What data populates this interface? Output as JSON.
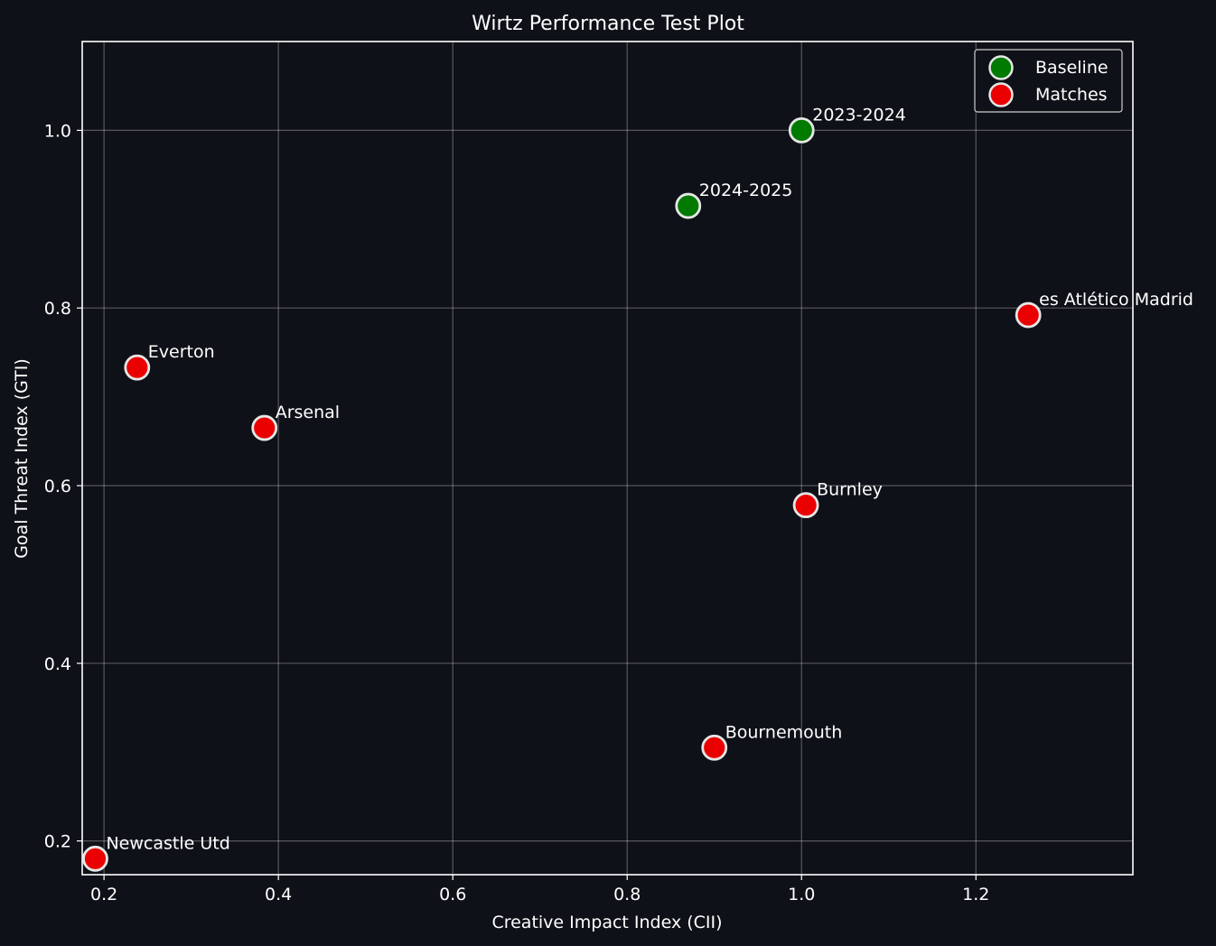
{
  "colors": {
    "background": "#0e1117",
    "axes": "#ffffff",
    "grid": "#ffffff",
    "text": "#ffffff",
    "marker_edge": "#e6e6e6"
  },
  "chart_data": {
    "type": "scatter",
    "title": "Wirtz Performance Test Plot",
    "xlabel": "Creative Impact Index (CII)",
    "ylabel": "Goal Threat Index (GTI)",
    "xlim": [
      0.175,
      1.38
    ],
    "ylim": [
      0.162,
      1.1
    ],
    "xticks": [
      0.2,
      0.4,
      0.6,
      0.8,
      1.0,
      1.2
    ],
    "xtick_labels": [
      "0.2",
      "0.4",
      "0.6",
      "0.8",
      "1.0",
      "1.2"
    ],
    "yticks": [
      0.2,
      0.4,
      0.6,
      0.8,
      1.0
    ],
    "ytick_labels": [
      "0.2",
      "0.4",
      "0.6",
      "0.8",
      "1.0"
    ],
    "grid": true,
    "legend_position": "top-right",
    "series": [
      {
        "name": "Baseline",
        "color": "#007a00",
        "points": [
          {
            "x": 1.0,
            "y": 1.0,
            "label": "2023-2024"
          },
          {
            "x": 0.87,
            "y": 0.915,
            "label": "2024-2025"
          }
        ]
      },
      {
        "name": "Matches",
        "color": "#ea0000",
        "points": [
          {
            "x": 1.26,
            "y": 0.792,
            "label": "es Atlético Madrid"
          },
          {
            "x": 0.238,
            "y": 0.733,
            "label": "Everton"
          },
          {
            "x": 0.384,
            "y": 0.665,
            "label": "Arsenal"
          },
          {
            "x": 1.005,
            "y": 0.578,
            "label": "Burnley"
          },
          {
            "x": 0.9,
            "y": 0.305,
            "label": "Bournemouth"
          },
          {
            "x": 0.19,
            "y": 0.18,
            "label": "Newcastle Utd"
          }
        ]
      }
    ]
  }
}
